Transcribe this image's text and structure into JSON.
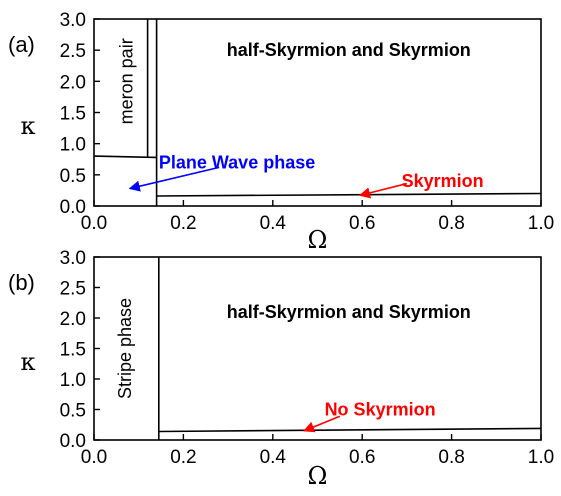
{
  "chart_data": [
    {
      "panel_label": "(a)",
      "type": "line",
      "xlabel": "Ω",
      "ylabel": "κ",
      "xlim": [
        0.0,
        1.0
      ],
      "ylim": [
        0.0,
        3.0
      ],
      "x_ticks": [
        "0.0",
        "0.2",
        "0.4",
        "0.6",
        "0.8",
        "1.0"
      ],
      "y_ticks": [
        "0.0",
        "0.5",
        "1.0",
        "1.5",
        "2.0",
        "2.5",
        "3.0"
      ],
      "boundaries": [
        {
          "points": [
            [
              0.0,
              0.8
            ],
            [
              0.14,
              0.78
            ]
          ]
        },
        {
          "points": [
            [
              0.12,
              0.78
            ],
            [
              0.12,
              3.0
            ]
          ]
        },
        {
          "points": [
            [
              0.14,
              0.0
            ],
            [
              0.14,
              3.0
            ]
          ]
        },
        {
          "points": [
            [
              0.14,
              0.16
            ],
            [
              1.0,
              0.2
            ]
          ]
        }
      ],
      "region_labels": [
        {
          "text": "meron pair",
          "x": 0.075,
          "y": 2.0,
          "rotated": true,
          "style": "plain"
        },
        {
          "text": "half-Skyrmion and Skyrmion",
          "x": 0.57,
          "y": 2.5,
          "rotated": false,
          "style": "bold"
        }
      ],
      "annotations": [
        {
          "text": "Plane Wave phase",
          "color": "#0000ff",
          "text_at": [
            0.32,
            0.7
          ],
          "arrow_from": [
            0.28,
            0.62
          ],
          "arrow_to": [
            0.08,
            0.28
          ]
        },
        {
          "text": "Skyrmion",
          "color": "#ff0000",
          "text_at": [
            0.78,
            0.4
          ],
          "arrow_from": [
            0.7,
            0.36
          ],
          "arrow_to": [
            0.595,
            0.17
          ]
        }
      ]
    },
    {
      "panel_label": "(b)",
      "type": "line",
      "xlabel": "Ω",
      "ylabel": "κ",
      "xlim": [
        0.0,
        1.0
      ],
      "ylim": [
        0.0,
        3.0
      ],
      "x_ticks": [
        "0.0",
        "0.2",
        "0.4",
        "0.6",
        "0.8",
        "1.0"
      ],
      "y_ticks": [
        "0.0",
        "0.5",
        "1.0",
        "1.5",
        "2.0",
        "2.5",
        "3.0"
      ],
      "boundaries": [
        {
          "points": [
            [
              0.145,
              0.0
            ],
            [
              0.145,
              3.0
            ]
          ]
        },
        {
          "points": [
            [
              0.145,
              0.14
            ],
            [
              1.0,
              0.19
            ]
          ]
        }
      ],
      "region_labels": [
        {
          "text": "Stripe phase",
          "x": 0.072,
          "y": 1.5,
          "rotated": true,
          "style": "plain"
        },
        {
          "text": "half-Skyrmion and Skyrmion",
          "x": 0.57,
          "y": 2.1,
          "rotated": false,
          "style": "bold"
        }
      ],
      "annotations": [
        {
          "text": "No Skyrmion",
          "color": "#ff0000",
          "text_at": [
            0.64,
            0.5
          ],
          "arrow_from": [
            0.55,
            0.39
          ],
          "arrow_to": [
            0.47,
            0.15
          ]
        }
      ]
    }
  ]
}
